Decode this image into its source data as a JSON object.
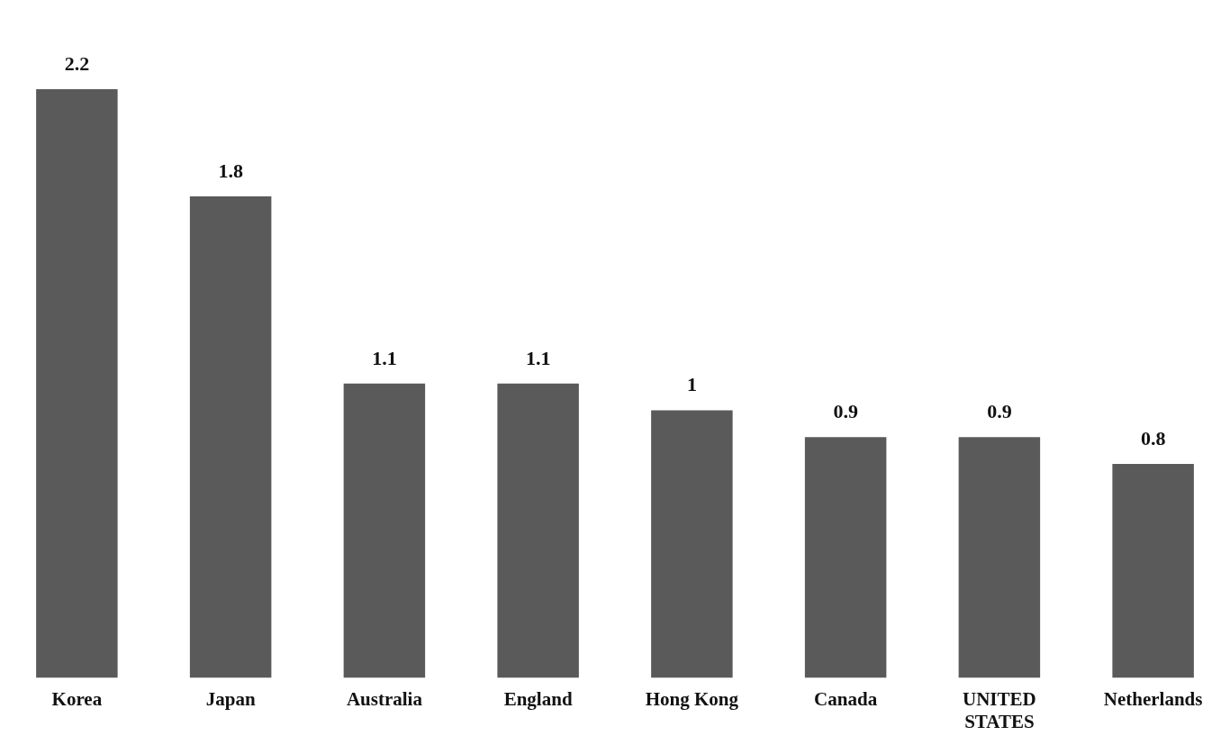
{
  "chart_data": {
    "type": "bar",
    "categories": [
      "Korea",
      "Japan",
      "Australia",
      "England",
      "Hong Kong",
      "Canada",
      "UNITED STATES",
      "Netherlands"
    ],
    "values": [
      2.2,
      1.8,
      1.1,
      1.1,
      1,
      0.9,
      0.9,
      0.8
    ],
    "color": "#5a5a5a",
    "data_labels": true,
    "grid": false,
    "legend": false
  }
}
